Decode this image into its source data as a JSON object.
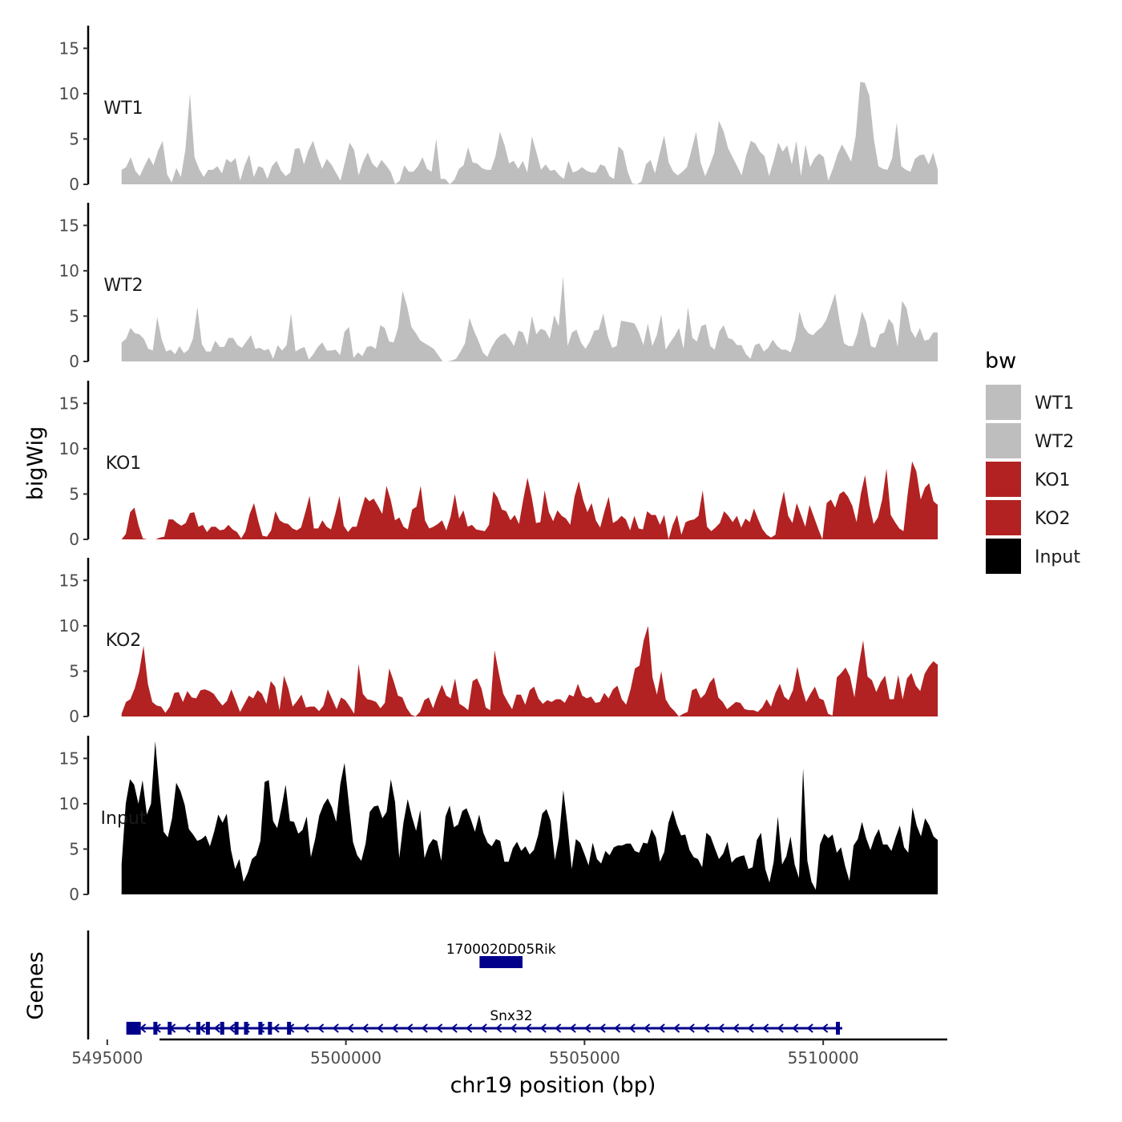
{
  "chart_data": {
    "type": "area",
    "y_axis_title": "bigWig",
    "genes_axis_title": "Genes",
    "x_axis_title": "chr19 position (bp)",
    "xlim": [
      5494600,
      5512600
    ],
    "data_range": [
      5495300,
      5512400
    ],
    "ylim": [
      0,
      17.5
    ],
    "y_ticks": [
      0,
      5,
      10,
      15
    ],
    "x_ticks": [
      5495000,
      5500000,
      5505000,
      5510000
    ],
    "colors": {
      "WT1": "#bebebe",
      "WT2": "#bebebe",
      "KO1": "#b22222",
      "KO2": "#b22222",
      "Input": "#000000",
      "gene": "#00008b"
    },
    "legend": {
      "title": "bw",
      "position": "right",
      "entries": [
        {
          "label": "WT1",
          "color": "#bebebe"
        },
        {
          "label": "WT2",
          "color": "#bebebe"
        },
        {
          "label": "KO1",
          "color": "#b22222"
        },
        {
          "label": "KO2",
          "color": "#b22222"
        },
        {
          "label": "Input",
          "color": "#000000"
        }
      ]
    },
    "series": [
      {
        "name": "WT1",
        "values": [
          1.6,
          1.9,
          3.0,
          1.5,
          0.9,
          2.0,
          3.0,
          2.1,
          3.7,
          4.8,
          1.1,
          0.2,
          1.8,
          0.8,
          3.8,
          10.0,
          3.0,
          1.7,
          0.8,
          1.6,
          1.6,
          2.0,
          1.2,
          2.8,
          2.4,
          2.9,
          0.4,
          2.1,
          3.3,
          0.8,
          2.0,
          1.8,
          0.6,
          2.0,
          2.6,
          1.5,
          0.9,
          1.3,
          3.9,
          4.0,
          2.2,
          3.8,
          4.8,
          3.1,
          1.7,
          2.8,
          2.2,
          1.3,
          0.4,
          2.5,
          4.6,
          3.8,
          1.0,
          2.5,
          3.5,
          2.3,
          1.8,
          2.7,
          2.1,
          1.4,
          0.0,
          0.4,
          2.1,
          1.4,
          1.4,
          2.0,
          3.0,
          1.7,
          1.4,
          5.0,
          0.6,
          0.6,
          0.0,
          0.5,
          1.7,
          2.1,
          4.1,
          2.4,
          2.3,
          1.8,
          1.6,
          1.6,
          3.1,
          5.8,
          4.3,
          2.3,
          2.6,
          1.7,
          2.6,
          1.3,
          5.3,
          3.5,
          1.6,
          2.2,
          1.5,
          1.6,
          1.0,
          0.6,
          2.6,
          1.3,
          1.5,
          1.9,
          1.5,
          1.3,
          1.3,
          2.2,
          2.0,
          0.9,
          0.6,
          4.2,
          3.7,
          1.4,
          0.1,
          0.0,
          0.3,
          2.2,
          2.7,
          1.2,
          3.4,
          5.4,
          2.4,
          1.4,
          1.0,
          1.4,
          1.9,
          3.8,
          5.8,
          2.4,
          0.9,
          2.1,
          3.5,
          7.0,
          5.9,
          4.0,
          3.0,
          2.0,
          1.0,
          3.2,
          4.8,
          4.5,
          3.6,
          3.1,
          0.9,
          2.6,
          4.6,
          3.6,
          4.3,
          2.2,
          4.8,
          0.9,
          4.4,
          1.9,
          2.9,
          3.4,
          3.0,
          0.4,
          1.7,
          3.3,
          4.4,
          3.5,
          2.5,
          5.3,
          11.3,
          11.2,
          9.8,
          5.0,
          2.0,
          1.7,
          1.6,
          2.9,
          6.8,
          2.0,
          1.6,
          1.4,
          2.8,
          3.2,
          3.3,
          2.2,
          3.5,
          1.6
        ]
      },
      {
        "name": "WT2",
        "values": [
          2.1,
          2.5,
          3.7,
          3.1,
          3.0,
          2.5,
          1.4,
          1.2,
          4.9,
          2.4,
          1.1,
          1.3,
          0.8,
          1.7,
          0.9,
          1.3,
          2.5,
          6.0,
          1.9,
          1.1,
          1.1,
          2.3,
          1.6,
          1.6,
          2.6,
          2.6,
          1.8,
          1.5,
          2.2,
          2.9,
          1.4,
          1.5,
          1.2,
          1.4,
          0.3,
          1.8,
          1.2,
          1.8,
          5.3,
          1.1,
          1.4,
          1.6,
          0.2,
          0.8,
          1.6,
          2.1,
          1.2,
          1.2,
          1.3,
          0.7,
          3.3,
          3.8,
          0.4,
          1.0,
          0.6,
          1.6,
          1.7,
          1.4,
          4.0,
          3.7,
          2.2,
          2.1,
          3.7,
          7.8,
          6.1,
          3.8,
          3.1,
          2.3,
          2.0,
          1.7,
          1.4,
          0.7,
          0.0,
          0.0,
          0.1,
          0.3,
          1.1,
          2.0,
          4.8,
          3.4,
          2.3,
          1.0,
          0.5,
          1.6,
          2.4,
          2.9,
          3.1,
          2.5,
          1.7,
          3.4,
          3.2,
          1.8,
          5.0,
          3.0,
          3.6,
          3.4,
          2.5,
          5.1,
          3.9,
          9.4,
          1.7,
          3.2,
          3.5,
          2.1,
          1.4,
          2.2,
          3.4,
          3.5,
          5.3,
          2.8,
          1.5,
          1.7,
          4.5,
          4.4,
          4.3,
          4.2,
          3.2,
          1.8,
          4.2,
          1.7,
          2.9,
          5.2,
          1.3,
          2.1,
          2.8,
          3.7,
          1.4,
          6.0,
          2.6,
          2.2,
          3.9,
          4.1,
          1.7,
          1.3,
          3.3,
          4.0,
          2.6,
          2.4,
          1.8,
          1.8,
          0.8,
          0.3,
          1.8,
          2.0,
          1.1,
          1.5,
          2.4,
          1.7,
          1.3,
          1.3,
          1.0,
          2.4,
          5.5,
          3.8,
          3.1,
          2.9,
          3.4,
          3.8,
          4.6,
          6.0,
          7.5,
          4.4,
          2.0,
          1.7,
          1.7,
          3.1,
          5.5,
          4.3,
          1.7,
          1.5,
          3.0,
          3.2,
          4.7,
          4.1,
          1.6,
          6.7,
          5.9,
          3.4,
          2.6,
          3.7,
          2.3,
          2.4,
          3.2,
          3.2
        ]
      },
      {
        "name": "KO1",
        "values": [
          0.0,
          0.6,
          3.0,
          3.5,
          1.5,
          0.1,
          0.0,
          0.0,
          0.0,
          0.2,
          0.3,
          2.2,
          2.2,
          1.8,
          1.5,
          1.8,
          2.9,
          3.0,
          1.4,
          1.6,
          0.8,
          1.4,
          1.4,
          1.0,
          1.1,
          1.6,
          1.1,
          0.8,
          0.1,
          0.9,
          2.8,
          4.0,
          2.0,
          0.4,
          0.3,
          1.0,
          3.1,
          2.1,
          1.8,
          1.7,
          1.2,
          1.0,
          1.3,
          3.0,
          4.8,
          1.2,
          1.2,
          2.1,
          1.4,
          1.1,
          2.8,
          4.8,
          1.5,
          0.8,
          1.4,
          1.4,
          3.1,
          4.7,
          4.2,
          4.5,
          3.7,
          2.8,
          5.9,
          4.3,
          2.1,
          2.4,
          1.4,
          1.1,
          3.3,
          3.6,
          5.9,
          2.1,
          1.2,
          1.4,
          1.7,
          2.1,
          1.0,
          2.5,
          5.0,
          2.3,
          3.2,
          1.4,
          1.6,
          1.1,
          1.0,
          0.9,
          1.6,
          5.3,
          4.6,
          3.3,
          3.1,
          2.1,
          2.7,
          1.7,
          4.4,
          6.8,
          4.6,
          1.8,
          1.9,
          5.4,
          3.0,
          2.0,
          3.2,
          2.6,
          2.3,
          1.6,
          4.7,
          6.4,
          4.4,
          3.0,
          4.0,
          2.1,
          1.3,
          3.1,
          4.7,
          1.8,
          2.1,
          2.6,
          2.2,
          1.0,
          2.6,
          1.2,
          1.1,
          3.1,
          2.7,
          2.7,
          1.6,
          2.7,
          0.0,
          1.6,
          2.7,
          0.5,
          1.9,
          2.1,
          2.2,
          2.6,
          5.4,
          1.4,
          0.9,
          1.3,
          1.8,
          3.1,
          2.6,
          1.9,
          2.6,
          1.3,
          2.3,
          1.9,
          3.4,
          2.2,
          1.1,
          0.5,
          0.2,
          0.5,
          3.3,
          5.3,
          2.6,
          1.8,
          4.0,
          2.7,
          1.4,
          3.8,
          2.5,
          1.2,
          0.0,
          4.0,
          4.4,
          3.5,
          5.0,
          5.3,
          4.7,
          3.7,
          1.9,
          5.0,
          7.1,
          3.8,
          1.7,
          2.4,
          4.4,
          7.8,
          2.7,
          1.9,
          1.2,
          0.9,
          5.2,
          8.6,
          7.5,
          4.4,
          5.7,
          6.2,
          4.2,
          3.8
        ]
      },
      {
        "name": "KO2",
        "values": [
          0.3,
          1.6,
          1.9,
          3.1,
          4.9,
          7.8,
          3.6,
          1.6,
          1.2,
          1.1,
          0.4,
          1.1,
          2.6,
          2.7,
          1.6,
          2.8,
          2.1,
          2.0,
          2.9,
          3.0,
          2.8,
          2.5,
          1.8,
          1.2,
          1.7,
          3.0,
          1.8,
          0.5,
          1.4,
          2.3,
          2.0,
          2.9,
          2.5,
          1.4,
          3.9,
          3.3,
          0.7,
          4.5,
          3.1,
          1.1,
          1.7,
          2.4,
          1.0,
          1.1,
          1.1,
          0.6,
          1.2,
          3.0,
          1.9,
          0.8,
          2.1,
          1.8,
          1.1,
          0.3,
          5.8,
          2.5,
          1.9,
          1.8,
          1.6,
          0.9,
          1.5,
          5.3,
          3.9,
          2.3,
          2.1,
          0.9,
          0.2,
          0.0,
          0.5,
          1.8,
          2.1,
          0.9,
          2.3,
          3.5,
          2.3,
          2.0,
          4.2,
          1.4,
          1.1,
          0.7,
          3.9,
          4.2,
          3.1,
          1.0,
          0.7,
          7.3,
          4.7,
          2.5,
          1.6,
          0.8,
          2.4,
          2.4,
          1.3,
          2.9,
          3.3,
          2.0,
          1.4,
          1.8,
          1.6,
          1.9,
          1.9,
          1.5,
          2.4,
          2.2,
          3.6,
          2.3,
          2.0,
          2.2,
          1.5,
          1.6,
          2.6,
          2.0,
          3.0,
          3.4,
          1.9,
          1.3,
          3.0,
          5.3,
          5.6,
          8.4,
          10.0,
          4.3,
          2.4,
          5.0,
          1.9,
          1.1,
          0.6,
          0.0,
          0.3,
          0.5,
          2.9,
          3.1,
          2.0,
          2.5,
          3.7,
          4.3,
          2.1,
          1.6,
          0.8,
          1.2,
          1.6,
          1.5,
          0.8,
          0.7,
          0.7,
          0.5,
          1.0,
          1.9,
          1.1,
          2.6,
          3.6,
          2.2,
          1.8,
          2.9,
          5.5,
          3.2,
          1.6,
          2.5,
          3.3,
          2.0,
          1.8,
          0.3,
          0.1,
          4.3,
          4.8,
          5.4,
          4.4,
          2.1,
          5.6,
          8.4,
          4.4,
          4.0,
          2.7,
          3.8,
          4.5,
          1.9,
          1.9,
          4.6,
          1.9,
          4.2,
          4.8,
          3.4,
          2.8,
          4.7,
          5.5,
          6.1,
          5.7
        ]
      },
      {
        "name": "Input",
        "values": [
          3.3,
          10.0,
          12.7,
          12.1,
          10.0,
          12.6,
          8.8,
          10.0,
          16.9,
          11.5,
          6.9,
          6.3,
          8.4,
          12.3,
          11.4,
          9.9,
          7.2,
          6.6,
          5.9,
          6.1,
          6.5,
          5.3,
          6.9,
          8.8,
          7.9,
          8.9,
          4.9,
          2.8,
          3.9,
          1.4,
          2.4,
          3.9,
          4.3,
          5.9,
          12.4,
          12.6,
          8.1,
          7.3,
          9.5,
          12.1,
          8.1,
          8.0,
          6.7,
          7.1,
          8.6,
          4.1,
          6.1,
          8.7,
          9.9,
          10.6,
          9.6,
          8.0,
          12.2,
          14.5,
          10.1,
          5.8,
          4.3,
          3.7,
          5.6,
          9.1,
          9.7,
          9.8,
          8.4,
          9.1,
          12.7,
          10.2,
          4.0,
          7.9,
          10.5,
          8.6,
          7.0,
          9.3,
          4.0,
          5.4,
          6.1,
          5.9,
          3.7,
          8.6,
          9.8,
          7.4,
          7.7,
          9.2,
          9.5,
          8.3,
          6.9,
          8.8,
          6.8,
          5.7,
          5.3,
          6.1,
          5.9,
          3.6,
          3.6,
          5.1,
          5.8,
          4.8,
          5.3,
          4.4,
          4.9,
          6.5,
          8.9,
          9.4,
          8.1,
          3.8,
          6.3,
          11.5,
          7.6,
          2.8,
          6.1,
          5.7,
          4.5,
          3.2,
          5.7,
          3.9,
          3.4,
          4.8,
          4.3,
          5.2,
          5.4,
          5.4,
          5.6,
          5.6,
          4.8,
          4.6,
          5.7,
          5.6,
          7.2,
          6.3,
          3.6,
          4.7,
          7.9,
          9.3,
          7.7,
          6.5,
          6.6,
          4.9,
          4.1,
          3.9,
          3.0,
          6.8,
          6.4,
          5.1,
          3.9,
          4.5,
          5.8,
          3.5,
          4.0,
          4.2,
          4.3,
          2.8,
          3.0,
          6.0,
          6.8,
          2.8,
          1.3,
          3.6,
          8.6,
          3.3,
          4.2,
          6.4,
          3.3,
          1.8,
          13.9,
          3.7,
          1.4,
          0.5,
          5.5,
          6.7,
          6.2,
          6.6,
          4.6,
          5.2,
          3.1,
          1.5,
          5.4,
          6.1,
          8.0,
          6.2,
          4.9,
          6.3,
          7.2,
          5.5,
          5.5,
          4.8,
          6.3,
          7.6,
          5.2,
          4.6,
          9.6,
          7.6,
          6.4,
          8.4,
          7.6,
          6.4,
          6.0
        ]
      }
    ],
    "genes": [
      {
        "name": "1700020D05Rik",
        "start": 5502800,
        "end": 5503700,
        "strand": "+"
      },
      {
        "name": "Snx32",
        "start": 5495400,
        "end": 5510400,
        "strand": "-",
        "exons": [
          5495400,
          5496000,
          5496300,
          5496900,
          5497100,
          5497400,
          5497700,
          5497900,
          5498200,
          5498400,
          5498800,
          5510300
        ]
      }
    ]
  }
}
